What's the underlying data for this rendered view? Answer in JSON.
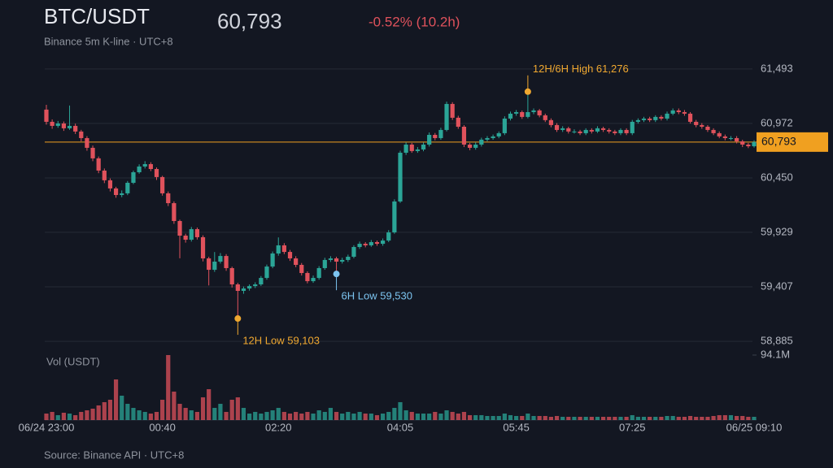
{
  "chart_data": {
    "type": "candlestick",
    "title": "BTC/USDT",
    "subtitle": "Binance 5m K-line · UTC+8",
    "change": "-0.52% (10.2h)",
    "source": "Source: Binance API · UTC+8",
    "volume_label": "Vol (USDT)",
    "last_price": {
      "value": 60793,
      "label": "60,793"
    },
    "up_color": "#2ba597",
    "down_color": "#e0525c",
    "price_line_color": "#f0a020",
    "grid": true,
    "categories": [
      "06/24 23:00",
      null,
      null,
      null,
      null,
      null,
      null,
      null,
      null,
      null,
      null,
      null,
      null,
      null,
      null,
      null,
      null,
      null,
      null,
      null,
      "00:40",
      null,
      null,
      null,
      null,
      null,
      null,
      null,
      null,
      null,
      null,
      null,
      null,
      null,
      null,
      null,
      null,
      null,
      null,
      null,
      "02:20",
      null,
      null,
      null,
      null,
      null,
      null,
      null,
      null,
      null,
      null,
      null,
      null,
      null,
      null,
      null,
      null,
      null,
      null,
      null,
      null,
      "04:05",
      null,
      null,
      null,
      null,
      null,
      null,
      null,
      null,
      null,
      null,
      null,
      null,
      null,
      null,
      null,
      null,
      null,
      null,
      null,
      "05:45",
      null,
      null,
      null,
      null,
      null,
      null,
      null,
      null,
      null,
      null,
      null,
      null,
      null,
      null,
      null,
      null,
      null,
      null,
      null,
      "07:25",
      null,
      null,
      null,
      null,
      null,
      null,
      null,
      null,
      null,
      null,
      null,
      null,
      null,
      null,
      null,
      null,
      null,
      null,
      null,
      null,
      "06/25 09:10"
    ],
    "ohlc": [
      [
        61104,
        61150,
        60960,
        60987
      ],
      [
        60987,
        61010,
        60920,
        60948
      ],
      [
        60948,
        60995,
        60930,
        60971
      ],
      [
        60971,
        60990,
        60900,
        60925
      ],
      [
        60925,
        61143,
        60910,
        60948
      ],
      [
        60948,
        60970,
        60870,
        60894
      ],
      [
        60894,
        60910,
        60800,
        60831
      ],
      [
        60831,
        60850,
        60710,
        60738
      ],
      [
        60738,
        60760,
        60610,
        60637
      ],
      [
        60637,
        60655,
        60495,
        60520
      ],
      [
        60520,
        60540,
        60400,
        60427
      ],
      [
        60427,
        60445,
        60320,
        60349
      ],
      [
        60349,
        60365,
        60260,
        60286
      ],
      [
        60286,
        60330,
        60265,
        60302
      ],
      [
        60302,
        60420,
        60285,
        60403
      ],
      [
        60403,
        60520,
        60390,
        60504
      ],
      [
        60504,
        60580,
        60490,
        60559
      ],
      [
        60559,
        60610,
        60540,
        60582
      ],
      [
        60582,
        60600,
        60515,
        60535
      ],
      [
        60535,
        60550,
        60430,
        60458
      ],
      [
        60458,
        60470,
        60280,
        60302
      ],
      [
        60302,
        60320,
        60180,
        60208
      ],
      [
        60208,
        60225,
        60010,
        60037
      ],
      [
        60037,
        60050,
        59680,
        59897
      ],
      [
        59897,
        59915,
        59830,
        59858
      ],
      [
        59858,
        59980,
        59840,
        59959
      ],
      [
        59959,
        59975,
        59860,
        59882
      ],
      [
        59882,
        59900,
        59650,
        59679
      ],
      [
        59679,
        59695,
        59420,
        59570
      ],
      [
        59570,
        59740,
        59550,
        59648
      ],
      [
        59648,
        59730,
        59630,
        59702
      ],
      [
        59702,
        59720,
        59560,
        59586
      ],
      [
        59586,
        59600,
        59400,
        59430
      ],
      [
        59430,
        59445,
        59103,
        59368
      ],
      [
        59368,
        59410,
        59340,
        59391
      ],
      [
        59391,
        59430,
        59370,
        59414
      ],
      [
        59414,
        59450,
        59395,
        59430
      ],
      [
        59430,
        59510,
        59415,
        59492
      ],
      [
        59492,
        59620,
        59475,
        59601
      ],
      [
        59601,
        59745,
        59585,
        59726
      ],
      [
        59726,
        59880,
        59705,
        59804
      ],
      [
        59804,
        59825,
        59720,
        59741
      ],
      [
        59741,
        59760,
        59655,
        59679
      ],
      [
        59679,
        59700,
        59595,
        59617
      ],
      [
        59617,
        59635,
        59515,
        59539
      ],
      [
        59539,
        59555,
        59440,
        59461
      ],
      [
        59461,
        59515,
        59445,
        59492
      ],
      [
        59492,
        59605,
        59475,
        59586
      ],
      [
        59586,
        59685,
        59570,
        59664
      ],
      [
        59664,
        59700,
        59645,
        59679
      ],
      [
        59679,
        59695,
        59530,
        59648
      ],
      [
        59648,
        59685,
        59630,
        59664
      ],
      [
        59664,
        59715,
        59645,
        59695
      ],
      [
        59695,
        59805,
        59680,
        59788
      ],
      [
        59788,
        59840,
        59770,
        59819
      ],
      [
        59819,
        59835,
        59785,
        59804
      ],
      [
        59804,
        59855,
        59790,
        59835
      ],
      [
        59835,
        59850,
        59800,
        59819
      ],
      [
        59819,
        59870,
        59800,
        59850
      ],
      [
        59850,
        59950,
        59835,
        59928
      ],
      [
        59928,
        60245,
        59915,
        60224
      ],
      [
        60224,
        60710,
        60210,
        60691
      ],
      [
        60691,
        60790,
        60670,
        60769
      ],
      [
        60769,
        60785,
        60690,
        60707
      ],
      [
        60707,
        60745,
        60690,
        60722
      ],
      [
        60722,
        60790,
        60705,
        60769
      ],
      [
        60769,
        60885,
        60750,
        60862
      ],
      [
        60862,
        60880,
        60810,
        60831
      ],
      [
        60831,
        60930,
        60815,
        60909
      ],
      [
        60909,
        61180,
        60895,
        61158
      ],
      [
        61158,
        61175,
        61005,
        61026
      ],
      [
        61026,
        61045,
        60920,
        60940
      ],
      [
        60940,
        60955,
        60745,
        60769
      ],
      [
        60769,
        60785,
        60715,
        60738
      ],
      [
        60738,
        60790,
        60720,
        60769
      ],
      [
        60769,
        60835,
        60750,
        60816
      ],
      [
        60816,
        60850,
        60800,
        60831
      ],
      [
        60831,
        60865,
        60815,
        60847
      ],
      [
        60847,
        60895,
        60830,
        60878
      ],
      [
        60878,
        61040,
        60860,
        61018
      ],
      [
        61018,
        61085,
        61000,
        61065
      ],
      [
        61065,
        61100,
        61045,
        61080
      ],
      [
        61080,
        61095,
        61015,
        61034
      ],
      [
        61034,
        61276,
        61020,
        61080
      ],
      [
        61080,
        61115,
        61060,
        61096
      ],
      [
        61096,
        61110,
        61030,
        61049
      ],
      [
        61049,
        61065,
        60985,
        61003
      ],
      [
        61003,
        61020,
        60935,
        60956
      ],
      [
        60956,
        60975,
        60890,
        60909
      ],
      [
        60909,
        60945,
        60890,
        60925
      ],
      [
        60925,
        60940,
        60875,
        60894
      ],
      [
        60894,
        60915,
        60875,
        60894
      ],
      [
        60894,
        60910,
        60860,
        60878
      ],
      [
        60878,
        60925,
        60860,
        60909
      ],
      [
        60909,
        60925,
        60875,
        60894
      ],
      [
        60894,
        60945,
        60880,
        60925
      ],
      [
        60925,
        60940,
        60890,
        60909
      ],
      [
        60909,
        60925,
        60875,
        60894
      ],
      [
        60894,
        60910,
        60860,
        60878
      ],
      [
        60878,
        60925,
        60860,
        60909
      ],
      [
        60909,
        60925,
        60860,
        60878
      ],
      [
        60878,
        61005,
        60860,
        60987
      ],
      [
        60987,
        61020,
        60970,
        61003
      ],
      [
        61003,
        61035,
        60985,
        61018
      ],
      [
        61018,
        61035,
        60985,
        61003
      ],
      [
        61003,
        61050,
        60985,
        61034
      ],
      [
        61034,
        61050,
        61000,
        61018
      ],
      [
        61018,
        61085,
        61000,
        61065
      ],
      [
        61065,
        61115,
        61050,
        61096
      ],
      [
        61096,
        61115,
        61060,
        61080
      ],
      [
        61080,
        61100,
        61045,
        61065
      ],
      [
        61065,
        61080,
        60970,
        60987
      ],
      [
        60987,
        61005,
        60935,
        60956
      ],
      [
        60956,
        60975,
        60920,
        60940
      ],
      [
        60940,
        60955,
        60890,
        60909
      ],
      [
        60909,
        60925,
        60860,
        60878
      ],
      [
        60878,
        60895,
        60830,
        60847
      ],
      [
        60847,
        60865,
        60810,
        60831
      ],
      [
        60831,
        60850,
        60810,
        60831
      ],
      [
        60831,
        60850,
        60780,
        60800
      ],
      [
        60800,
        60815,
        60745,
        60769
      ],
      [
        60769,
        60785,
        60735,
        60753
      ],
      [
        60753,
        60810,
        60740,
        60793
      ]
    ],
    "volume": [
      9400000,
      11800000,
      7100000,
      10600000,
      9400000,
      7100000,
      11800000,
      14100000,
      16500000,
      21200000,
      25900000,
      29400000,
      58800000,
      35300000,
      23500000,
      17600000,
      14100000,
      11800000,
      9400000,
      11800000,
      29400000,
      94100000,
      41200000,
      23500000,
      17600000,
      14100000,
      11800000,
      32900000,
      44700000,
      17600000,
      23500000,
      11800000,
      29400000,
      32900000,
      17600000,
      9400000,
      11800000,
      9400000,
      11800000,
      14100000,
      17600000,
      11800000,
      9400000,
      11800000,
      9400000,
      11800000,
      9400000,
      14100000,
      11800000,
      17600000,
      11800000,
      9400000,
      11800000,
      9400000,
      11800000,
      9400000,
      9400000,
      7100000,
      9400000,
      11800000,
      17600000,
      25900000,
      14100000,
      11800000,
      9400000,
      9400000,
      9400000,
      11800000,
      9400000,
      14100000,
      11800000,
      9400000,
      11800000,
      7100000,
      7100000,
      7100000,
      5900000,
      5900000,
      5900000,
      9400000,
      7100000,
      5900000,
      5900000,
      9400000,
      5900000,
      5900000,
      5900000,
      4700000,
      5900000,
      4700000,
      4700000,
      4700000,
      4700000,
      4700000,
      4700000,
      4700000,
      4700000,
      4700000,
      4700000,
      4700000,
      4700000,
      7100000,
      4700000,
      4700000,
      4700000,
      4700000,
      4700000,
      5900000,
      5900000,
      4700000,
      4700000,
      5900000,
      4700000,
      4700000,
      4700000,
      5900000,
      7100000,
      7100000,
      7100000,
      5900000,
      5900000,
      4700000,
      4700000
    ],
    "ylim": [
      58800,
      61570
    ],
    "yticks": [
      {
        "value": 61493,
        "label": "61,493"
      },
      {
        "value": 60972,
        "label": "60,972"
      },
      {
        "value": 60450,
        "label": "60,450"
      },
      {
        "value": 59929,
        "label": "59,929"
      },
      {
        "value": 59407,
        "label": "59,407"
      },
      {
        "value": 58885,
        "label": "58,885"
      }
    ],
    "vol_ylim": [
      0,
      94100000
    ],
    "vol_yticks": [
      {
        "value": 94100000,
        "label": "94.1M"
      }
    ],
    "annotations": [
      {
        "label": "12H/6H High 61,276",
        "value": 61276,
        "color": "#f0a830"
      },
      {
        "label": "12H Low 59,103",
        "value": 59103,
        "color": "#f0a830"
      },
      {
        "label": "6H Low 59,530",
        "value": 59530,
        "color": "#7cc4f0"
      }
    ]
  }
}
